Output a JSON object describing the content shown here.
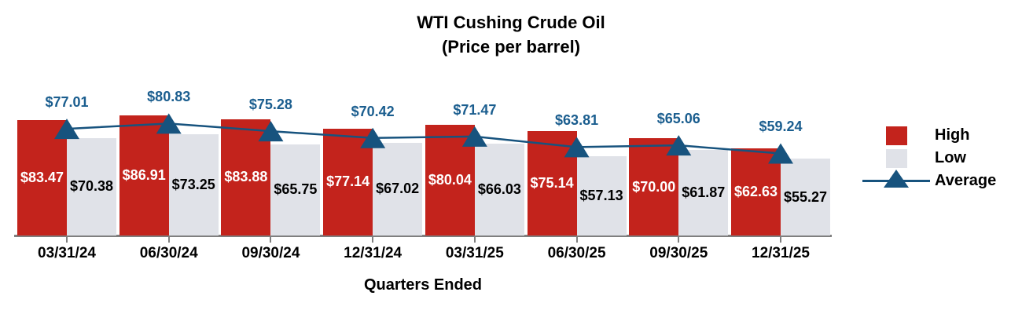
{
  "chart_data": {
    "type": "bar",
    "title": "WTI Cushing Crude Oil",
    "subtitle": "(Price per barrel)",
    "xlabel": "Quarters Ended",
    "ylabel": "",
    "value_prefix": "$",
    "ylim": [
      0,
      95
    ],
    "grid": false,
    "legend_position": "right",
    "axis_color": "#7f7f7f",
    "categories": [
      "03/31/24",
      "06/30/24",
      "09/30/24",
      "12/31/24",
      "03/31/25",
      "06/30/25",
      "09/30/25",
      "12/31/25"
    ],
    "series": [
      {
        "name": "High",
        "type": "bar",
        "color": "#c3231c",
        "label_color": "#ffffff",
        "values": [
          83.47,
          86.91,
          83.88,
          77.14,
          80.04,
          75.14,
          70.0,
          62.63
        ]
      },
      {
        "name": "Low",
        "type": "bar",
        "color": "#e0e2e8",
        "label_color": "#000000",
        "values": [
          70.38,
          73.25,
          65.75,
          67.02,
          66.03,
          57.13,
          61.87,
          55.27
        ]
      },
      {
        "name": "Average",
        "type": "line",
        "color": "#17537e",
        "label_color": "#1b5e8f",
        "marker": "triangle-up",
        "values": [
          77.01,
          80.83,
          75.28,
          70.42,
          71.47,
          63.81,
          65.06,
          59.24
        ]
      }
    ]
  }
}
